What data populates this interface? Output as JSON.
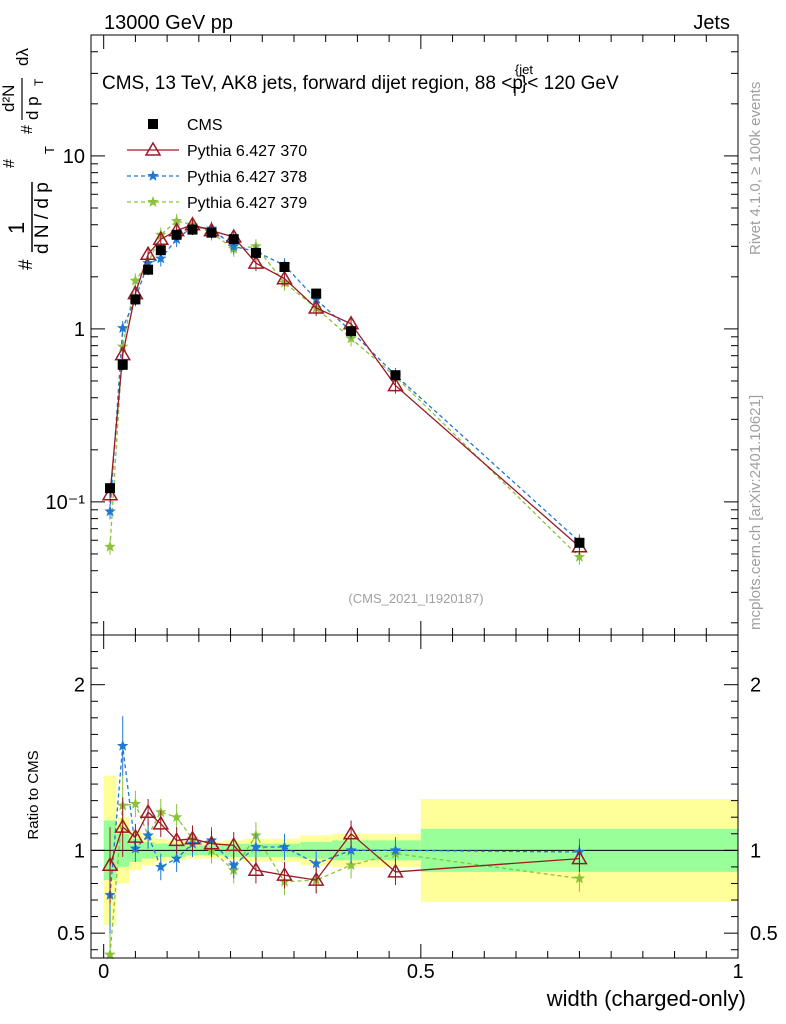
{
  "header": {
    "left": "13000 GeV pp",
    "right": "Jets"
  },
  "title": {
    "main": "CMS, 13 TeV, AK8 jets, forward dijet region, 88 <",
    "p": "p",
    "sup": "{jet",
    "sub": "T",
    "tail": "}< 120 GeV"
  },
  "side": {
    "rivet": "Rivet 4.1.0, ≥ 100k events",
    "mcplots": "mcplots.cern.ch [arXiv:2401.10621]"
  },
  "watermark": "(CMS_2021_I1920187)",
  "ylabel_ratio": "Ratio to CMS",
  "xlabel": "width (charged-only)",
  "ylabel_main": {
    "hash1": "#",
    "one": "1",
    "dN": "d N / d p",
    "T1": "T",
    "hash2": "#",
    "d2N": "d²N",
    "hash3": "#",
    "dpT": "d p",
    "T2": "T",
    "dl": "dλ"
  },
  "legend": [
    {
      "label": "CMS",
      "color": "#000000",
      "marker": "square",
      "dash": ""
    },
    {
      "label": "Pythia 6.427 370",
      "color": "#9a1a24",
      "marker": "triangle",
      "dash": ""
    },
    {
      "label": "Pythia 6.427 378",
      "color": "#1f78d4",
      "marker": "star",
      "dash": "4,3"
    },
    {
      "label": "Pythia 6.427 379",
      "color": "#8ac23a",
      "marker": "star",
      "dash": "4,3"
    }
  ],
  "colors": {
    "band_inner": "#99ff99",
    "band_outer": "#ffff99"
  },
  "chart_data": {
    "type": "line",
    "xlabel": "width (charged-only)",
    "xlim": [
      -0.02,
      1.0
    ],
    "x_ticks": [
      0,
      0.5,
      1
    ],
    "x_tick_labels": [
      "0",
      "0.5",
      "1"
    ],
    "main": {
      "ylog": true,
      "ylim": [
        0.017,
        50
      ],
      "y_ticks": [
        0.1,
        1,
        10
      ],
      "y_tick_labels": [
        "10⁻¹",
        "1",
        "10"
      ]
    },
    "ratio": {
      "ylim": [
        0.35,
        2.3
      ],
      "y_ticks": [
        0.5,
        1,
        2
      ],
      "y_tick_labels": [
        "0.5",
        "1",
        "2"
      ]
    },
    "x": [
      0.01,
      0.03,
      0.05,
      0.07,
      0.09,
      0.115,
      0.14,
      0.17,
      0.205,
      0.24,
      0.285,
      0.335,
      0.39,
      0.46,
      0.75
    ],
    "band_edges": [
      0,
      0.02,
      0.04,
      0.06,
      0.08,
      0.1,
      0.13,
      0.15,
      0.19,
      0.22,
      0.26,
      0.31,
      0.36,
      0.42,
      0.5,
      1.0
    ],
    "band_inner": [
      0.18,
      0.1,
      0.07,
      0.05,
      0.04,
      0.04,
      0.03,
      0.03,
      0.04,
      0.04,
      0.04,
      0.05,
      0.06,
      0.06,
      0.13
    ],
    "band_outer": [
      0.45,
      0.2,
      0.12,
      0.09,
      0.07,
      0.06,
      0.05,
      0.05,
      0.06,
      0.07,
      0.07,
      0.09,
      0.1,
      0.1,
      0.31
    ],
    "series": [
      {
        "name": "CMS",
        "values": [
          0.12,
          0.62,
          1.48,
          2.2,
          2.85,
          3.5,
          3.75,
          3.6,
          3.3,
          2.75,
          2.28,
          1.6,
          0.97,
          0.54,
          0.058
        ]
      },
      {
        "name": "Pythia 6.427 370",
        "values": [
          0.11,
          0.71,
          1.6,
          2.7,
          3.3,
          3.7,
          4.0,
          3.7,
          3.4,
          2.4,
          1.95,
          1.32,
          1.07,
          0.47,
          0.055
        ],
        "ratio": [
          0.91,
          1.14,
          1.08,
          1.23,
          1.16,
          1.06,
          1.07,
          1.04,
          1.03,
          0.88,
          0.85,
          0.82,
          1.1,
          0.87,
          0.95
        ]
      },
      {
        "name": "Pythia 6.427 378",
        "values": [
          0.088,
          1.01,
          1.5,
          2.4,
          2.55,
          3.3,
          3.9,
          3.8,
          3.0,
          2.8,
          2.33,
          1.48,
          0.97,
          0.54,
          0.059
        ],
        "ratio": [
          0.73,
          1.63,
          1.01,
          1.09,
          0.9,
          0.95,
          1.04,
          1.06,
          0.91,
          1.02,
          1.02,
          0.92,
          1.0,
          1.0,
          0.99
        ]
      },
      {
        "name": "Pythia 6.427 379",
        "values": [
          0.055,
          0.79,
          1.9,
          2.4,
          3.5,
          4.2,
          4.0,
          3.6,
          2.9,
          3.0,
          1.85,
          1.32,
          0.88,
          0.53,
          0.048
        ],
        "ratio": [
          0.37,
          1.27,
          1.28,
          1.09,
          1.23,
          1.2,
          1.07,
          1.0,
          0.88,
          1.09,
          0.81,
          0.82,
          0.91,
          0.98,
          0.83
        ]
      }
    ]
  }
}
